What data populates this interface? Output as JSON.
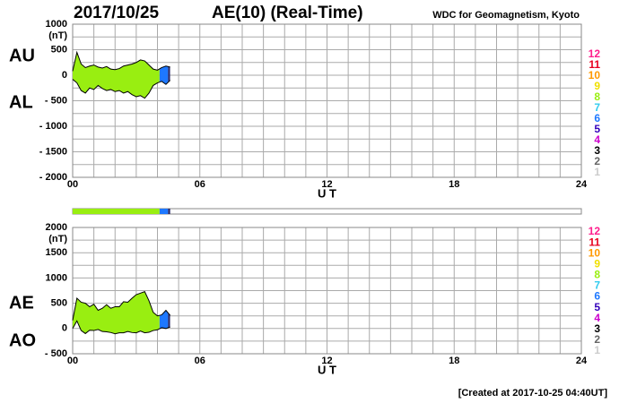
{
  "header": {
    "date": "2017/10/25",
    "title": "AE(10) (Real-Time)",
    "source": "WDC for Geomagnetism, Kyoto"
  },
  "footer": "[Created at 2017-10-25 04:40UT]",
  "status_bar": {
    "segments": [
      {
        "start": 0,
        "end": 4.1,
        "color": "#99ee11"
      },
      {
        "start": 4.1,
        "end": 4.5,
        "color": "#1e78ff"
      },
      {
        "start": 4.5,
        "end": 4.6,
        "color": "#2a2a6a"
      }
    ]
  },
  "chart_data": [
    {
      "type": "area-band",
      "xlabel": "U T",
      "ylabel": "(nT)",
      "xlim": [
        0,
        24
      ],
      "xticks": [
        {
          "value": 0,
          "label": "00"
        },
        {
          "value": 6,
          "label": "06"
        },
        12,
        18,
        24
      ],
      "x_grid": 1,
      "ylim": [
        -2000,
        1000
      ],
      "yticks": [
        1000,
        500,
        0,
        {
          "value": -500,
          "label": "- 500"
        },
        {
          "value": -1000,
          "label": "- 1000"
        },
        {
          "value": -1500,
          "label": "- 1500"
        },
        {
          "value": -2000,
          "label": "- 2000"
        }
      ],
      "y_grid": 250,
      "x": [
        0,
        0.2,
        0.4,
        0.6,
        0.8,
        1.0,
        1.2,
        1.4,
        1.6,
        1.8,
        2.0,
        2.2,
        2.4,
        2.6,
        2.8,
        3.0,
        3.2,
        3.4,
        3.6,
        3.8,
        4.0,
        4.2,
        4.4,
        4.6
      ],
      "series": [
        {
          "name": "AU",
          "color": "#000000",
          "values": [
            80,
            450,
            220,
            150,
            180,
            200,
            160,
            140,
            170,
            120,
            110,
            130,
            180,
            200,
            220,
            250,
            300,
            280,
            200,
            120,
            100,
            150,
            180,
            160
          ]
        },
        {
          "name": "AL",
          "color": "#000000",
          "values": [
            -80,
            -150,
            -300,
            -350,
            -250,
            -280,
            -200,
            -260,
            -300,
            -280,
            -320,
            -300,
            -350,
            -320,
            -380,
            -420,
            -400,
            -450,
            -350,
            -200,
            -150,
            -120,
            -180,
            -100
          ]
        }
      ],
      "legend": [
        {
          "label": "12",
          "color": "#ff1e8c"
        },
        {
          "label": "11",
          "color": "#e8001e"
        },
        {
          "label": "10",
          "color": "#ff9900"
        },
        {
          "label": "9",
          "color": "#f0e000"
        },
        {
          "label": "8",
          "color": "#99ee11"
        },
        {
          "label": "7",
          "color": "#33ccee"
        },
        {
          "label": "6",
          "color": "#1e78ff"
        },
        {
          "label": "5",
          "color": "#3300bb"
        },
        {
          "label": "4",
          "color": "#cc00cc"
        },
        {
          "label": "3",
          "color": "#000000"
        },
        {
          "label": "2",
          "color": "#666666"
        },
        {
          "label": "1",
          "color": "#cccccc"
        }
      ]
    },
    {
      "type": "area-band",
      "xlabel": "U T",
      "ylabel": "(nT)",
      "xlim": [
        0,
        24
      ],
      "xticks": [
        {
          "value": 0,
          "label": "00"
        },
        {
          "value": 6,
          "label": "06"
        },
        12,
        18,
        24
      ],
      "x_grid": 1,
      "ylim": [
        -500,
        2000
      ],
      "yticks": [
        2000,
        1500,
        1000,
        500,
        0,
        {
          "value": -500,
          "label": "- 500"
        }
      ],
      "y_grid": 250,
      "x": [
        0,
        0.2,
        0.4,
        0.6,
        0.8,
        1.0,
        1.2,
        1.4,
        1.6,
        1.8,
        2.0,
        2.2,
        2.4,
        2.6,
        2.8,
        3.0,
        3.2,
        3.4,
        3.6,
        3.8,
        4.0,
        4.2,
        4.4,
        4.6
      ],
      "series": [
        {
          "name": "AE",
          "color": "#000000",
          "values": [
            160,
            600,
            520,
            500,
            430,
            480,
            360,
            400,
            470,
            400,
            430,
            430,
            530,
            520,
            600,
            670,
            700,
            730,
            550,
            320,
            250,
            270,
            360,
            260
          ]
        },
        {
          "name": "AO",
          "color": "#000000",
          "values": [
            0,
            150,
            -40,
            -100,
            -35,
            -40,
            -20,
            -60,
            -65,
            -80,
            -105,
            -85,
            -85,
            -60,
            -80,
            -85,
            -50,
            -85,
            -75,
            -40,
            -25,
            15,
            0,
            30
          ]
        }
      ],
      "legend": [
        {
          "label": "12",
          "color": "#ff1e8c"
        },
        {
          "label": "11",
          "color": "#e8001e"
        },
        {
          "label": "10",
          "color": "#ff9900"
        },
        {
          "label": "9",
          "color": "#f0e000"
        },
        {
          "label": "8",
          "color": "#99ee11"
        },
        {
          "label": "7",
          "color": "#33ccee"
        },
        {
          "label": "6",
          "color": "#1e78ff"
        },
        {
          "label": "5",
          "color": "#3300bb"
        },
        {
          "label": "4",
          "color": "#cc00cc"
        },
        {
          "label": "3",
          "color": "#000000"
        },
        {
          "label": "2",
          "color": "#666666"
        },
        {
          "label": "1",
          "color": "#cccccc"
        }
      ]
    }
  ]
}
